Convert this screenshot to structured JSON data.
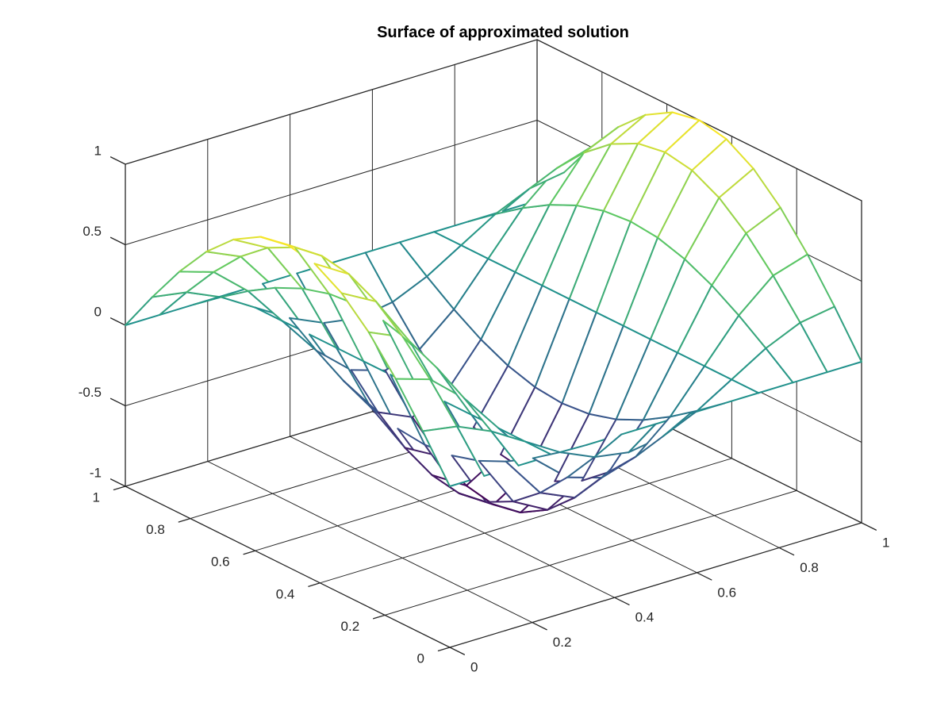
{
  "chart_data": {
    "type": "surface",
    "title": "Surface of approximated solution",
    "xlabel": "",
    "ylabel": "",
    "zlabel": "",
    "xlim": [
      0,
      1
    ],
    "ylim": [
      0,
      1
    ],
    "zlim": [
      -1,
      1
    ],
    "x_ticks": [
      "0",
      "0.2",
      "0.4",
      "0.6",
      "0.8",
      "1"
    ],
    "y_ticks": [
      "0",
      "0.2",
      "0.4",
      "0.6",
      "0.8",
      "1"
    ],
    "z_ticks": [
      "-1",
      "-0.5",
      "0",
      "0.5",
      "1"
    ],
    "grid": true,
    "colormap": "viridis",
    "colormap_stops": [
      "#440154",
      "#3b528b",
      "#21918c",
      "#5ec962",
      "#fde725"
    ],
    "mesh": {
      "x": [
        0,
        0.0833,
        0.1667,
        0.25,
        0.3333,
        0.4167,
        0.5,
        0.5833,
        0.6667,
        0.75,
        0.8333,
        0.9167,
        1
      ],
      "y": [
        0,
        0.0833,
        0.1667,
        0.25,
        0.3333,
        0.4167,
        0.5,
        0.5833,
        0.6667,
        0.75,
        0.8333,
        0.9167,
        1
      ],
      "z": [
        [
          0,
          0,
          0,
          0,
          0,
          0,
          0,
          0,
          0,
          0,
          0,
          0,
          0
        ],
        [
          0.259,
          0.2241,
          0.1294,
          0,
          -0.1294,
          -0.2241,
          -0.259,
          -0.2241,
          -0.1294,
          0,
          0.1294,
          0.2241,
          0.259
        ],
        [
          0.5,
          0.433,
          0.25,
          0,
          -0.25,
          -0.433,
          -0.5,
          -0.433,
          -0.25,
          0,
          0.25,
          0.433,
          0.5
        ],
        [
          0.7071,
          0.6124,
          0.3536,
          0,
          -0.3536,
          -0.6124,
          -0.7071,
          -0.6124,
          -0.3536,
          0,
          0.3536,
          0.6124,
          0.7071
        ],
        [
          0.866,
          0.75,
          0.433,
          0,
          -0.433,
          -0.75,
          -0.866,
          -0.75,
          -0.433,
          0,
          0.433,
          0.75,
          0.866
        ],
        [
          0.9659,
          0.8365,
          0.483,
          0,
          -0.483,
          -0.8365,
          -0.9659,
          -0.8365,
          -0.483,
          0,
          0.483,
          0.8365,
          0.9659
        ],
        [
          1,
          0.866,
          0.5,
          0,
          -0.5,
          -0.866,
          -1,
          -0.866,
          -0.5,
          0,
          0.5,
          0.866,
          1
        ],
        [
          0.9659,
          0.8365,
          0.483,
          0,
          -0.483,
          -0.8365,
          -0.9659,
          -0.8365,
          -0.483,
          0,
          0.483,
          0.8365,
          0.9659
        ],
        [
          0.866,
          0.75,
          0.433,
          0,
          -0.433,
          -0.75,
          -0.866,
          -0.75,
          -0.433,
          0,
          0.433,
          0.75,
          0.866
        ],
        [
          0.7071,
          0.6124,
          0.3536,
          0,
          -0.3536,
          -0.6124,
          -0.7071,
          -0.6124,
          -0.3536,
          0,
          0.3536,
          0.6124,
          0.7071
        ],
        [
          0.5,
          0.433,
          0.25,
          0,
          -0.25,
          -0.433,
          -0.5,
          -0.433,
          -0.25,
          0,
          0.25,
          0.433,
          0.5
        ],
        [
          0.259,
          0.2241,
          0.1294,
          0,
          -0.1294,
          -0.2241,
          -0.259,
          -0.2241,
          -0.1294,
          0,
          0.1294,
          0.2241,
          0.259
        ],
        [
          0,
          0,
          0,
          0,
          0,
          0,
          0,
          0,
          0,
          0,
          0,
          0,
          0
        ]
      ]
    }
  }
}
